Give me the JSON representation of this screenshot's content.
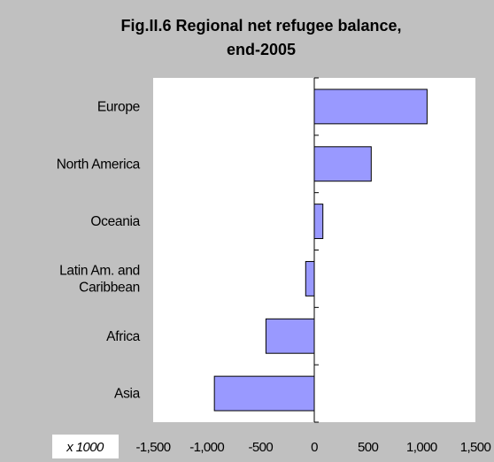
{
  "chart_data": {
    "type": "bar",
    "orientation": "horizontal",
    "title_lines": [
      "Fig.II.6 Regional net refugee balance,",
      "end-2005"
    ],
    "categories": [
      "Europe",
      "North America",
      "Oceania",
      "Latin Am. and Caribbean",
      "Africa",
      "Asia"
    ],
    "category_label_lines": [
      [
        "Europe"
      ],
      [
        "North America"
      ],
      [
        "Oceania"
      ],
      [
        "Latin Am. and",
        "Caribbean"
      ],
      [
        "Africa"
      ],
      [
        "Asia"
      ]
    ],
    "values": [
      1050,
      530,
      80,
      -80,
      -450,
      -930
    ],
    "xlim": [
      -1500,
      1500
    ],
    "xticks": [
      -1500,
      -1000,
      -500,
      0,
      500,
      1000,
      1500
    ],
    "xtick_labels": [
      "-1,500",
      "-1,000",
      "-500",
      "0",
      "500",
      "1,000",
      "1,500"
    ],
    "unit_label": "x 1000",
    "grid": false,
    "legend": "none",
    "colors": {
      "bar_fill": "#9999ff",
      "bar_stroke": "#000000",
      "plot_bg": "#ffffff",
      "chart_bg": "#c0c0c0"
    }
  }
}
